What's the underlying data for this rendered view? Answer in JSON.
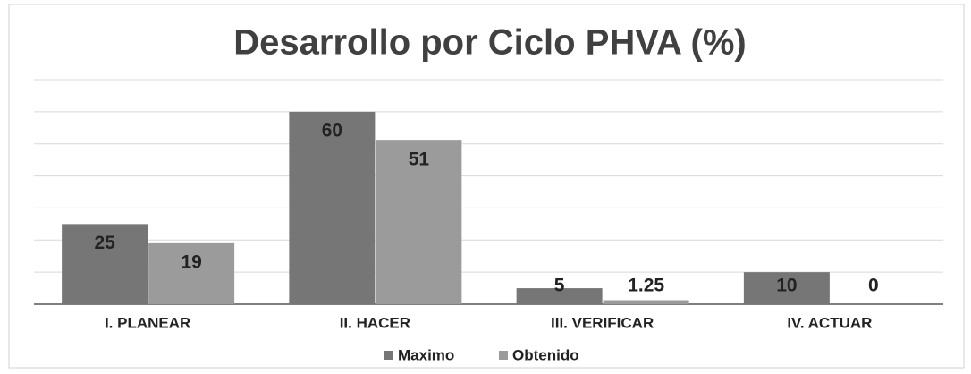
{
  "chart_data": {
    "type": "bar",
    "title": "Desarrollo por Ciclo PHVA (%)",
    "categories": [
      "I. PLANEAR",
      "II. HACER",
      "III. VERIFICAR",
      "IV. ACTUAR"
    ],
    "series": [
      {
        "name": "Maximo",
        "color": "#767676",
        "values": [
          25,
          60,
          5,
          10
        ]
      },
      {
        "name": "Obtenido",
        "color": "#9b9b9b",
        "values": [
          19,
          51,
          1.25,
          0
        ]
      }
    ],
    "ylim": [
      0,
      70
    ],
    "yticks": [
      0,
      10,
      20,
      30,
      40,
      50,
      60,
      70
    ],
    "grid": true,
    "legend": "bottom"
  }
}
